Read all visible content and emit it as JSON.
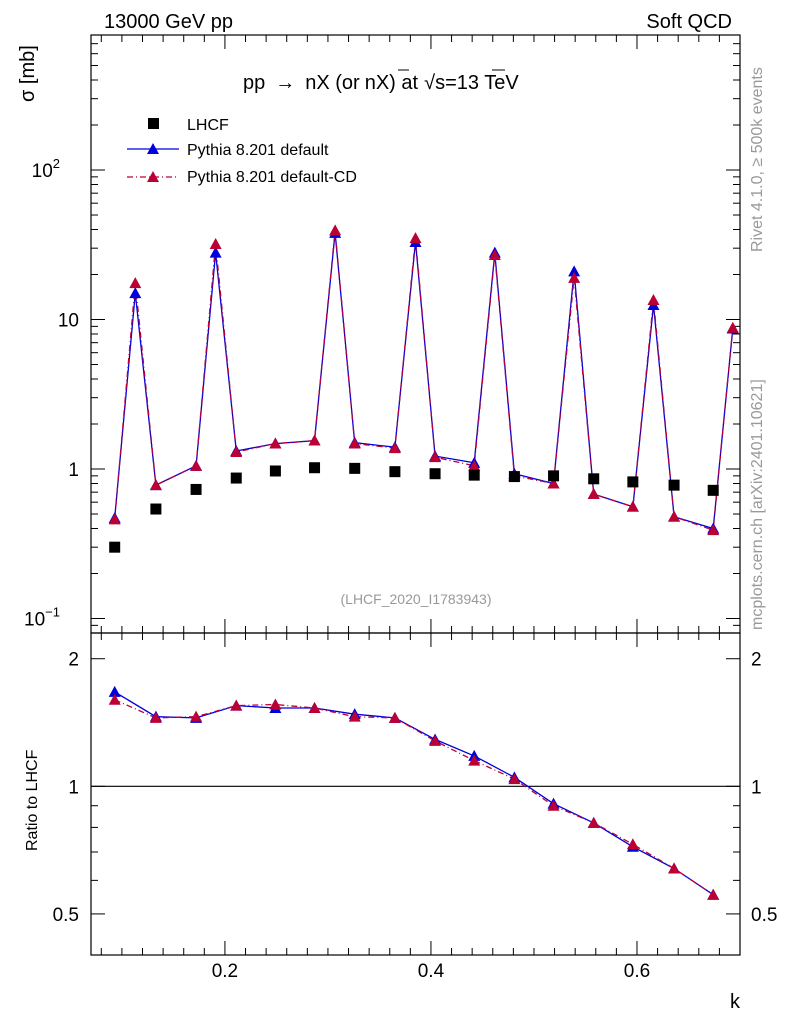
{
  "header": {
    "left": "13000 GeV pp",
    "right": "Soft QCD"
  },
  "side_labels": {
    "rivet": "Rivet 4.1.0, ≥ 500k events",
    "mcplots": "mcplots.cern.ch [arXiv:2401.10621]"
  },
  "colors": {
    "lhcf": "#000000",
    "pythia_default": "#0000dd",
    "pythia_cd": "#bb0033",
    "side_text": "#999999",
    "analysis_text": "#999999"
  },
  "chart_data": [
    {
      "type": "scatter+line",
      "panel": "main",
      "title": "pp → nX (or n̅X) at √s=13 TeV",
      "title_parts": {
        "process": "pp",
        "arrow": "→",
        "final": "nX (or",
        "nbar": "n",
        "tail": "X) at",
        "root": "√",
        "s": "s",
        "energy": "=13 TeV"
      },
      "analysis_label": "(LHCF_2020_I1783943)",
      "ylabel": "σ [mb]",
      "yscale": "log",
      "ylim": [
        0.08,
        800
      ],
      "xlim": [
        0.07,
        0.7
      ],
      "y_ticks": [
        {
          "value": 0.1,
          "base": "10",
          "exp": "−1"
        },
        {
          "value": 1,
          "base": "1",
          "exp": ""
        },
        {
          "value": 10,
          "base": "10",
          "exp": ""
        },
        {
          "value": 100,
          "base": "10",
          "exp": "2"
        }
      ],
      "legend": {
        "position": "top-left",
        "entries": [
          "LHCF",
          "Pythia 8.201 default",
          "Pythia 8.201 default-CD"
        ]
      },
      "series": [
        {
          "name": "LHCF",
          "style": "marker-square",
          "x": [
            0.093,
            0.133,
            0.172,
            0.211,
            0.249,
            0.287,
            0.326,
            0.365,
            0.404,
            0.442,
            0.481,
            0.519,
            0.558,
            0.596,
            0.636,
            0.674
          ],
          "values": [
            0.3,
            0.54,
            0.73,
            0.87,
            0.97,
            1.02,
            1.01,
            0.96,
            0.93,
            0.91,
            0.89,
            0.9,
            0.86,
            0.82,
            0.78,
            0.72
          ]
        },
        {
          "name": "Pythia 8.201 default",
          "style": "line-solid-triangle",
          "x": [
            0.093,
            0.113,
            0.133,
            0.172,
            0.191,
            0.211,
            0.249,
            0.287,
            0.307,
            0.326,
            0.365,
            0.385,
            0.404,
            0.442,
            0.462,
            0.481,
            0.519,
            0.539,
            0.558,
            0.596,
            0.616,
            0.636,
            0.674,
            0.693
          ],
          "values": [
            0.47,
            15.0,
            0.78,
            1.05,
            28.0,
            1.32,
            1.48,
            1.55,
            38.0,
            1.5,
            1.4,
            33.0,
            1.22,
            1.1,
            28.0,
            0.93,
            0.8,
            21.0,
            0.68,
            0.56,
            12.5,
            0.48,
            0.4,
            8.7
          ]
        },
        {
          "name": "Pythia 8.201 default-CD",
          "style": "line-dashdot-triangle",
          "x": [
            0.093,
            0.113,
            0.133,
            0.172,
            0.191,
            0.211,
            0.249,
            0.287,
            0.307,
            0.326,
            0.365,
            0.385,
            0.404,
            0.442,
            0.462,
            0.481,
            0.519,
            0.539,
            0.558,
            0.596,
            0.616,
            0.636,
            0.674,
            0.693
          ],
          "values": [
            0.46,
            17.5,
            0.78,
            1.05,
            32.0,
            1.3,
            1.48,
            1.55,
            39.5,
            1.48,
            1.38,
            35.0,
            1.2,
            1.05,
            27.0,
            0.9,
            0.8,
            19.0,
            0.68,
            0.56,
            13.5,
            0.48,
            0.39,
            8.8
          ]
        }
      ]
    },
    {
      "type": "line",
      "panel": "ratio",
      "ylabel": "Ratio to LHCF",
      "xlabel": "k",
      "yscale": "log",
      "ylim": [
        0.4,
        2.3
      ],
      "xlim": [
        0.07,
        0.7
      ],
      "x_ticks": [
        {
          "value": 0.2,
          "label": "0.2"
        },
        {
          "value": 0.4,
          "label": "0.4"
        },
        {
          "value": 0.6,
          "label": "0.6"
        }
      ],
      "y_ticks": [
        {
          "value": 0.5,
          "label": "0.5"
        },
        {
          "value": 1,
          "label": "1"
        },
        {
          "value": 2,
          "label": "2"
        }
      ],
      "reference_line": 1,
      "series": [
        {
          "name": "Pythia 8.201 default",
          "x": [
            0.093,
            0.133,
            0.172,
            0.211,
            0.249,
            0.287,
            0.326,
            0.365,
            0.404,
            0.442,
            0.481,
            0.519,
            0.558,
            0.596,
            0.636,
            0.674
          ],
          "values": [
            1.67,
            1.46,
            1.45,
            1.55,
            1.53,
            1.53,
            1.48,
            1.45,
            1.29,
            1.18,
            1.05,
            0.91,
            0.82,
            0.72,
            0.64,
            0.555
          ]
        },
        {
          "name": "Pythia 8.201 default-CD",
          "x": [
            0.093,
            0.133,
            0.172,
            0.211,
            0.249,
            0.287,
            0.326,
            0.365,
            0.404,
            0.442,
            0.481,
            0.519,
            0.558,
            0.596,
            0.636,
            0.674
          ],
          "values": [
            1.6,
            1.45,
            1.46,
            1.55,
            1.56,
            1.53,
            1.46,
            1.45,
            1.28,
            1.15,
            1.04,
            0.9,
            0.82,
            0.73,
            0.64,
            0.555
          ]
        }
      ]
    }
  ]
}
